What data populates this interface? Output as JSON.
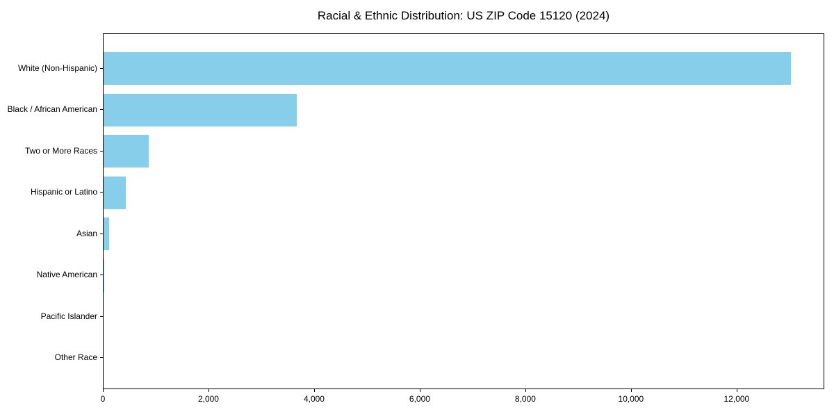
{
  "title": "Racial & Ethnic Distribution: US ZIP Code 15120 (2024)",
  "colors": {
    "bar": "#87CEEB",
    "axis": "#000000",
    "text": "#000000",
    "background": "#FFFFFF"
  },
  "chart_data": {
    "type": "bar",
    "orientation": "horizontal",
    "title": "Racial & Ethnic Distribution: US ZIP Code 15120 (2024)",
    "categories": [
      "White (Non-Hispanic)",
      "Black / African American",
      "Two or More Races",
      "Hispanic or Latino",
      "Asian",
      "Native American",
      "Pacific Islander",
      "Other Race"
    ],
    "values": [
      13010,
      3660,
      850,
      420,
      100,
      10,
      0,
      0
    ],
    "xlabel": "",
    "ylabel": "",
    "xlim": [
      0,
      13660
    ],
    "x_ticks": [
      0,
      2000,
      4000,
      6000,
      8000,
      10000,
      12000
    ],
    "x_tick_labels": [
      "0",
      "2,000",
      "4,000",
      "6,000",
      "8,000",
      "10,000",
      "12,000"
    ],
    "grid": false,
    "legend": false,
    "bar_color": "#87CEEB"
  }
}
